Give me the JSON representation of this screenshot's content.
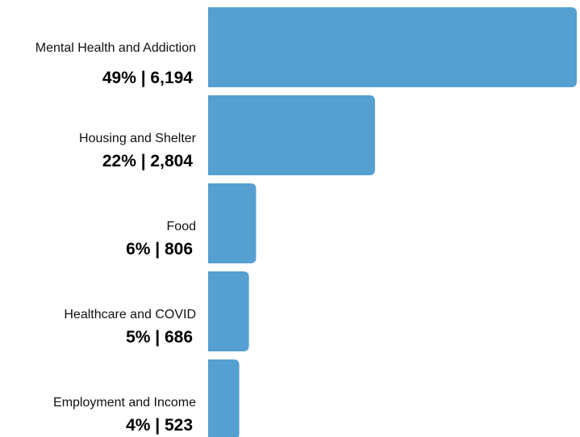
{
  "chart_data": {
    "type": "bar",
    "orientation": "horizontal",
    "categories": [
      "Mental Health and Addiction",
      "Housing and Shelter",
      "Food",
      "Healthcare and COVID",
      "Employment and Income"
    ],
    "values": [
      6194,
      2804,
      806,
      686,
      523
    ],
    "value_labels": [
      "49% | 6,194",
      "22% | 2,804",
      "6% | 806",
      "5% | 686",
      "4% | 523"
    ],
    "title": "",
    "xlabel": "",
    "ylabel": "",
    "xlim": [
      0,
      6194
    ],
    "grid": false,
    "legend": "none",
    "bar_color": "#559fd1"
  }
}
